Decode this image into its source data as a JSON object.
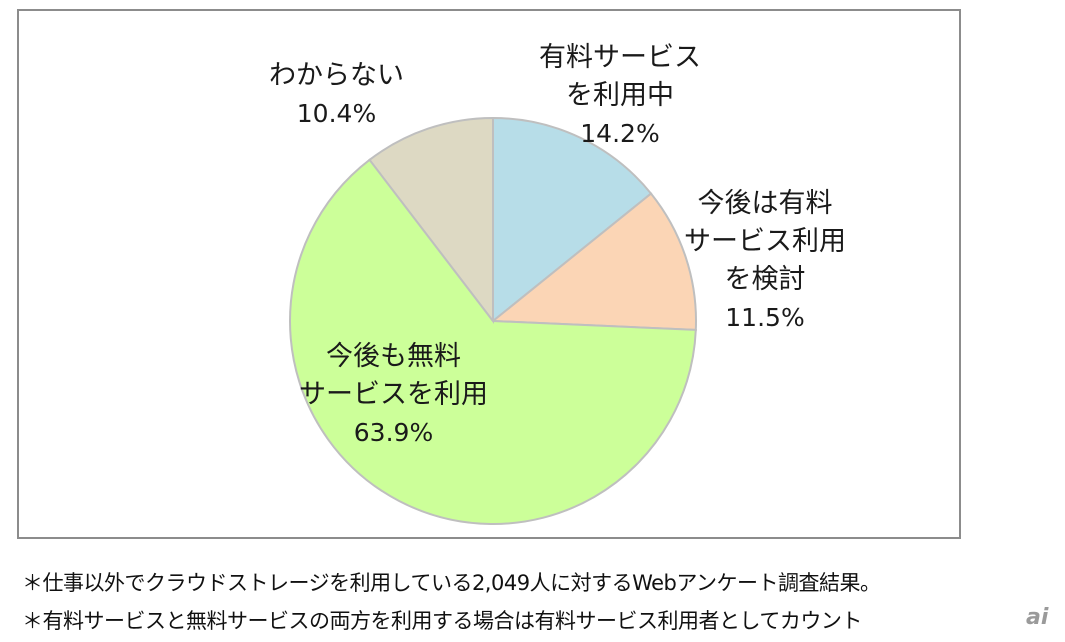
{
  "chart_data": {
    "type": "pie",
    "slices": [
      {
        "label_lines": [
          "有料サービス",
          "を利用中"
        ],
        "value": 14.2,
        "value_text": "14.2%",
        "color": "#b7dde8"
      },
      {
        "label_lines": [
          "今後は有料",
          "サービス利用",
          "を検討"
        ],
        "value": 11.5,
        "value_text": "11.5%",
        "color": "#fbd5b5"
      },
      {
        "label_lines": [
          "今後も無料",
          "サービスを利用"
        ],
        "value": 63.9,
        "value_text": "63.9%",
        "color": "#ccff99"
      },
      {
        "label_lines": [
          "わからない"
        ],
        "value": 10.4,
        "value_text": "10.4%",
        "color": "#ddd9c3"
      }
    ],
    "start": "12 o'clock",
    "direction": "clockwise",
    "slice_border_color": "#bfbfbf"
  },
  "notes": [
    "＊仕事以外でクラウドストレージを利用している2,049人に対するWebアンケート調査結果。",
    "＊有料サービスと無料サービスの両方を利用する場合は有料サービス利用者としてカウント"
  ],
  "watermark": "ai"
}
